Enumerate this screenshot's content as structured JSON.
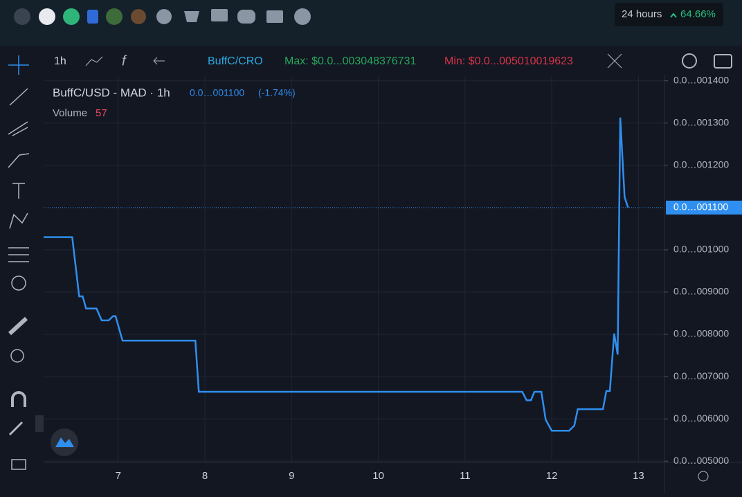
{
  "header": {
    "badge_period": "24 hours",
    "badge_change": "64.66%"
  },
  "toolbar": {
    "interval": "1h",
    "pair": "BuffC/CRO",
    "max": "Max: $0.0...003048376731",
    "min": "Min: $0.0...005010019623"
  },
  "chart_data": {
    "type": "line",
    "title": "BuffC/USD - MAD · 1h",
    "last_price": "0.0…001100",
    "change": "(-1.74%)",
    "volume_label": "Volume",
    "volume_value": 57,
    "x": [
      6.14,
      6.47,
      6.55,
      6.59,
      6.63,
      6.75,
      6.81,
      6.89,
      6.94,
      6.97,
      7.05,
      7.89,
      7.93,
      11.66,
      11.71,
      11.76,
      11.8,
      11.88,
      11.93,
      12.0,
      12.2,
      12.26,
      12.3,
      12.59,
      12.63,
      12.67,
      12.72,
      12.76,
      12.79,
      12.84,
      12.88
    ],
    "series": [
      {
        "color": "#2f8ff0",
        "values": [
          1.03e-06,
          1.03e-06,
          8.9e-07,
          8.9e-07,
          8.61e-07,
          8.61e-07,
          8.33e-07,
          8.33e-07,
          8.43e-07,
          8.43e-07,
          7.85e-07,
          7.85e-07,
          6.64e-07,
          6.64e-07,
          6.44e-07,
          6.44e-07,
          6.64e-07,
          6.64e-07,
          5.98e-07,
          5.72e-07,
          5.72e-07,
          5.84e-07,
          6.23e-07,
          6.23e-07,
          6.66e-07,
          6.66e-07,
          8.02e-07,
          7.52e-07,
          1.313e-06,
          1.125e-06,
          1.1e-06
        ]
      }
    ],
    "last_price_value": 1.1e-06,
    "xlim": [
      6.14,
      13.3
    ],
    "xticks": [
      7,
      8,
      9,
      10,
      11,
      12,
      13
    ],
    "ylim": [
      4.97e-07,
      1.411e-06
    ],
    "yticks": [
      {
        "value": 5e-07,
        "label": "0.0…005000"
      },
      {
        "value": 6e-07,
        "label": "0.0…006000"
      },
      {
        "value": 7e-07,
        "label": "0.0…007000"
      },
      {
        "value": 8e-07,
        "label": "0.0…008000"
      },
      {
        "value": 9e-07,
        "label": "0.0…009000"
      },
      {
        "value": 1e-06,
        "label": "0.0…001000"
      },
      {
        "value": 1.2e-06,
        "label": "0.0…001200"
      },
      {
        "value": 1.3e-06,
        "label": "0.0…001300"
      },
      {
        "value": 1.4e-06,
        "label": "0.0…001400"
      }
    ],
    "grid": true
  }
}
